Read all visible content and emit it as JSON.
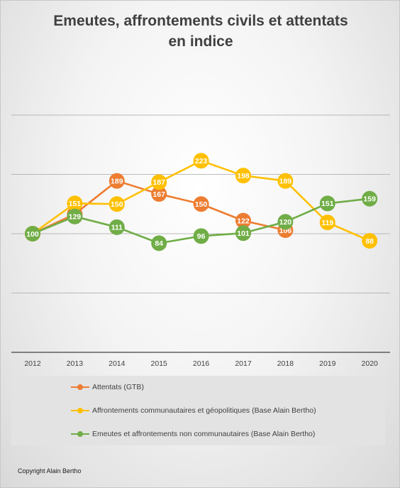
{
  "chart_data": {
    "type": "line",
    "title": "Emeutes, affrontements civils et attentats en indice",
    "title_lines": [
      "Emeutes, affrontements civils et attentats",
      "en indice"
    ],
    "categories": [
      "2012",
      "2013",
      "2014",
      "2015",
      "2016",
      "2017",
      "2018",
      "2019",
      "2020"
    ],
    "ylim": [
      -100,
      350
    ],
    "grid": true,
    "legend_position": "bottom",
    "series": [
      {
        "name": "Attentats (GTB)",
        "color": "#ed7d31",
        "values": [
          100,
          133,
          189,
          167,
          150,
          122,
          106,
          null,
          null
        ]
      },
      {
        "name": "Affrontements communautaires et géopolitiques (Base Alain Bertho)",
        "color": "#ffc000",
        "values": [
          100,
          151,
          150,
          187,
          223,
          198,
          189,
          119,
          88
        ]
      },
      {
        "name": "Emeutes et affrontements non communautaires (Base Alain Bertho)",
        "color": "#70ad47",
        "values": [
          100,
          129,
          111,
          84,
          96,
          101,
          120,
          151,
          159
        ]
      }
    ]
  },
  "footer": {
    "copyright": "Copyright Alain Bertho"
  }
}
